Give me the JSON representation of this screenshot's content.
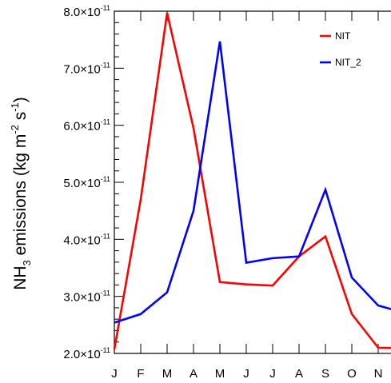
{
  "chart_data": {
    "type": "line",
    "title": "",
    "xlabel": "",
    "ylabel": {
      "prefix": "NH",
      "sub": "3",
      "middle": " emissions (kg m",
      "sup1": "-2",
      "middle2": " s",
      "sup2": "-1",
      "suffix": ")"
    },
    "categories": [
      "J",
      "F",
      "M",
      "A",
      "M",
      "J",
      "J",
      "A",
      "S",
      "O",
      "N",
      "D"
    ],
    "ylim": [
      2e-11,
      8e-11
    ],
    "yticks": [
      {
        "value": 2e-11,
        "mantissa": "2.0",
        "exponent": "-11"
      },
      {
        "value": 3e-11,
        "mantissa": "3.0",
        "exponent": "-11"
      },
      {
        "value": 4e-11,
        "mantissa": "4.0",
        "exponent": "-11"
      },
      {
        "value": 5e-11,
        "mantissa": "5.0",
        "exponent": "-11"
      },
      {
        "value": 6e-11,
        "mantissa": "6.0",
        "exponent": "-11"
      },
      {
        "value": 7e-11,
        "mantissa": "7.0",
        "exponent": "-11"
      },
      {
        "value": 8e-11,
        "mantissa": "8.0",
        "exponent": "-11"
      }
    ],
    "times_sign": "×10",
    "grid": false,
    "legend_position": "top-right",
    "series": [
      {
        "name": "NIT",
        "color": "#ff0000",
        "values": [
          2.07e-11,
          4.7e-11,
          7.97e-11,
          5.95e-11,
          3.25e-11,
          3.21e-11,
          3.19e-11,
          3.7e-11,
          4.05e-11,
          2.69e-11,
          2.1e-11,
          2.09e-11
        ]
      },
      {
        "name": "NIT_2",
        "color": "#0000ff",
        "values": [
          2.54e-11,
          2.69e-11,
          3.07e-11,
          4.5e-11,
          7.47e-11,
          3.59e-11,
          3.67e-11,
          3.7e-11,
          4.87e-11,
          3.33e-11,
          2.84e-11,
          2.71e-11
        ]
      }
    ]
  }
}
